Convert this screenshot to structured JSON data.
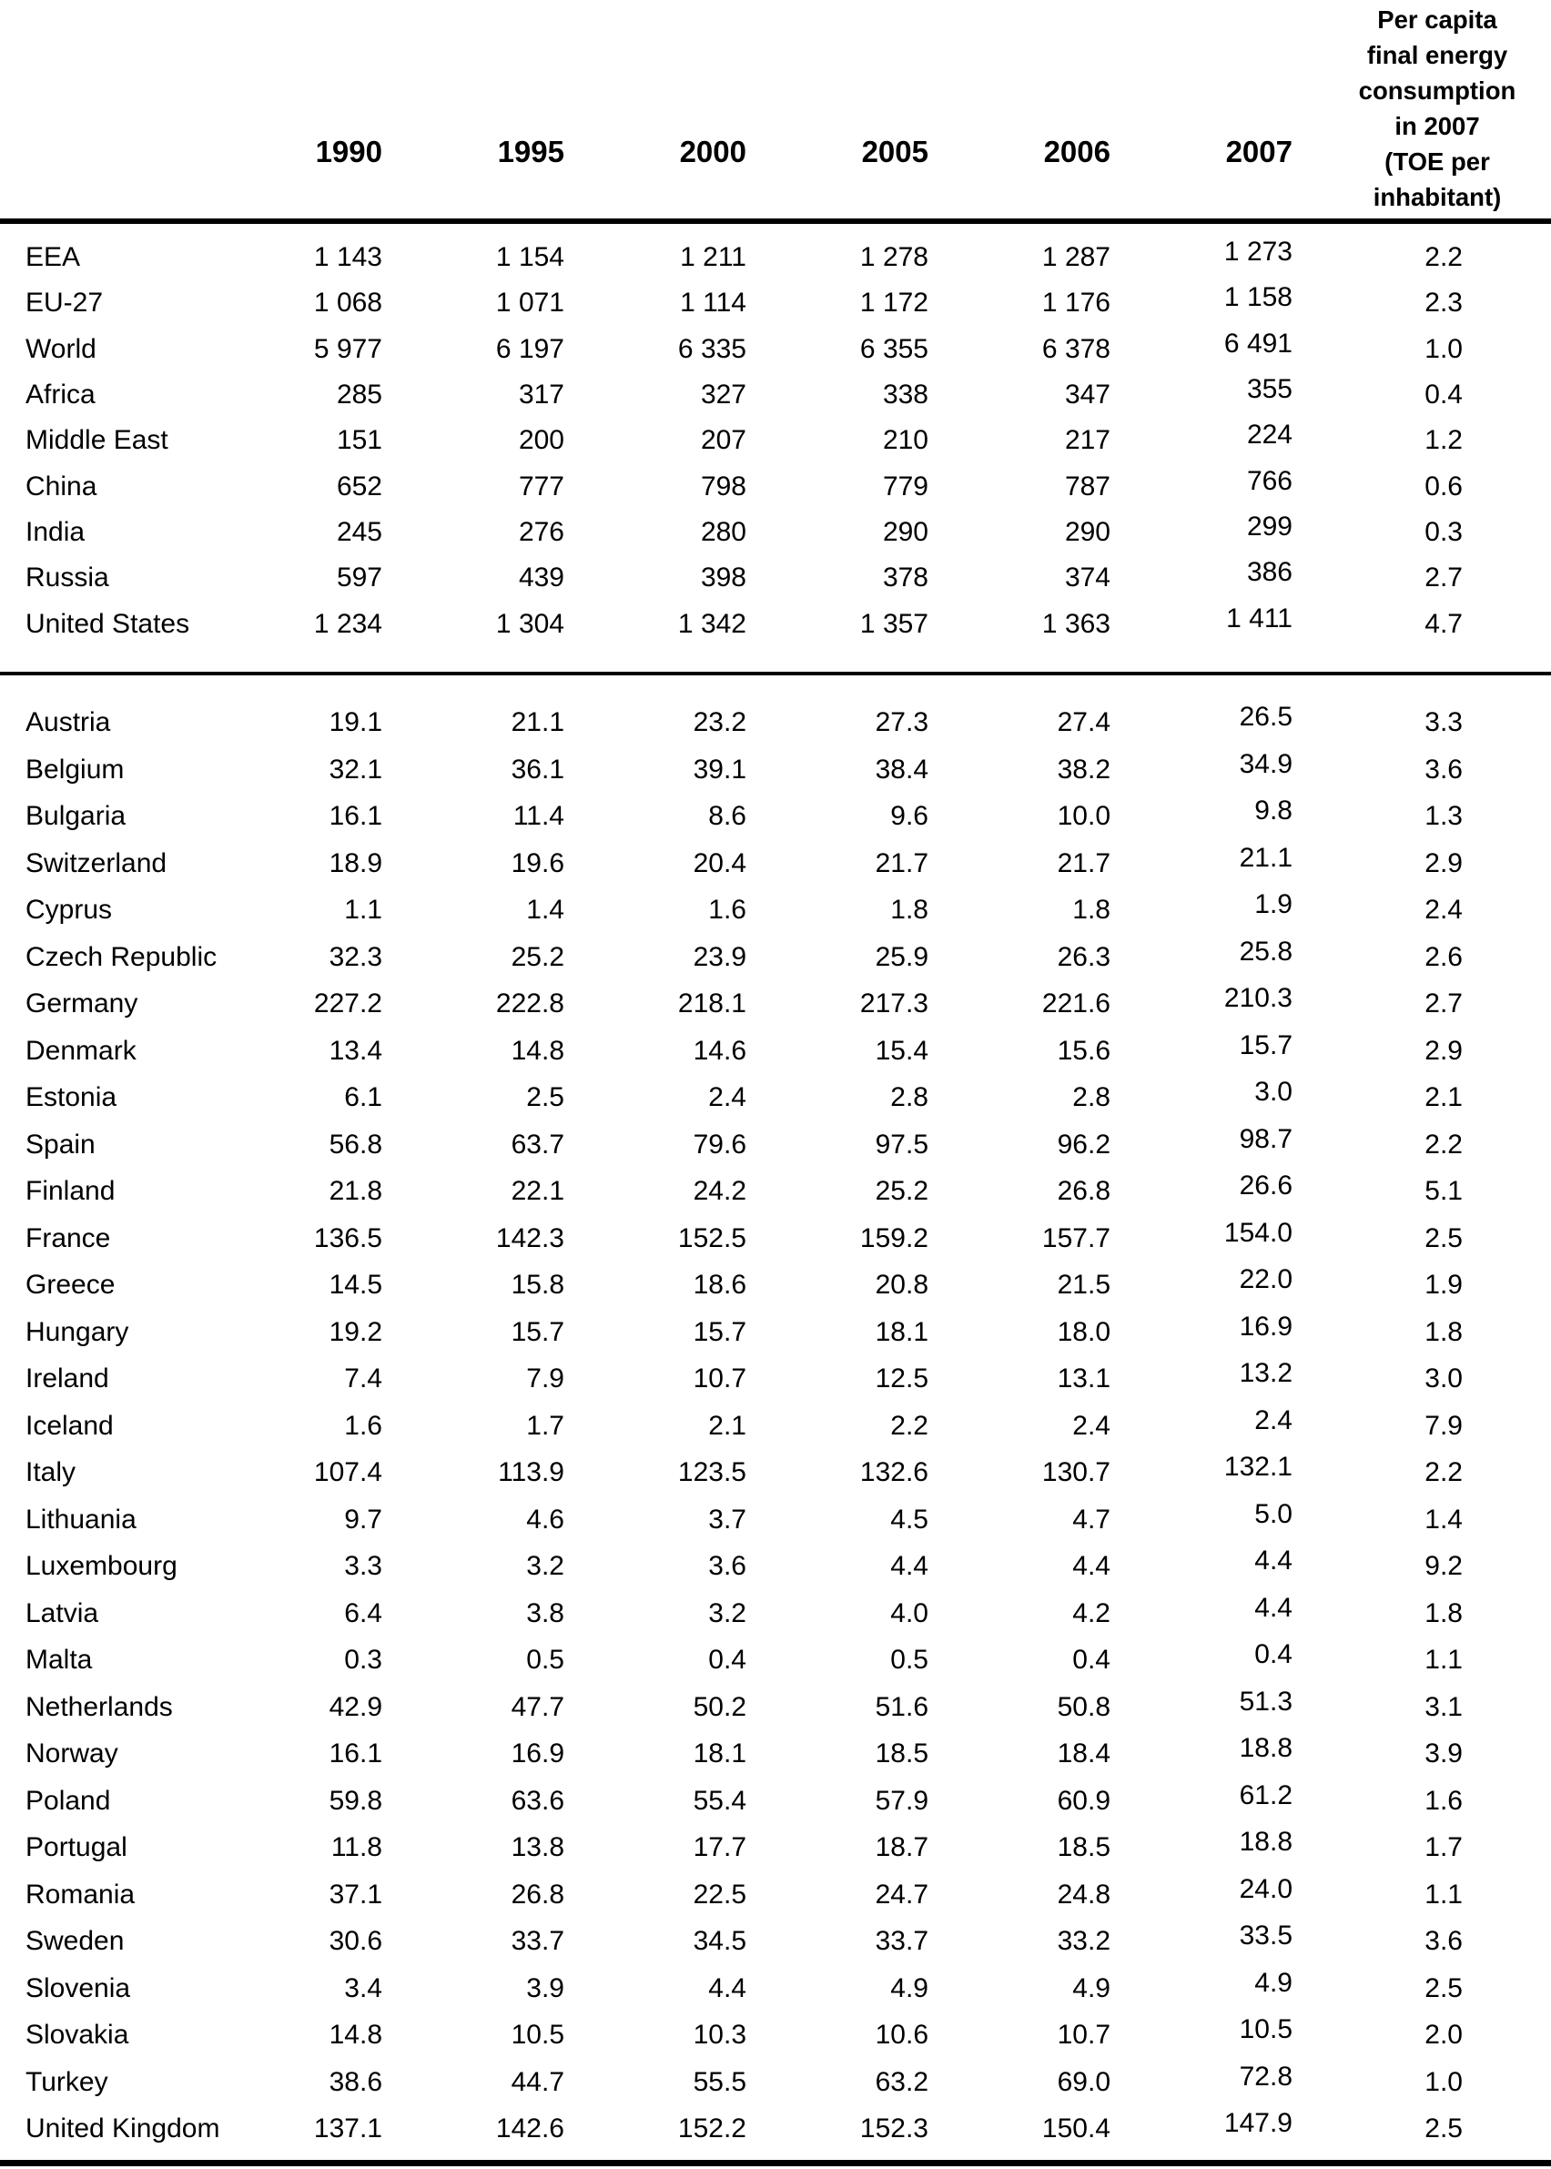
{
  "table": {
    "corner_label": "",
    "year_headers": [
      "1990",
      "1995",
      "2000",
      "2005",
      "2006",
      "2007"
    ],
    "per_capita_header_lines": [
      "Per capita",
      "final energy",
      "consumption",
      "in 2007",
      "(TOE per",
      "inhabitant)"
    ],
    "sections": [
      {
        "name": "world-regions",
        "rows": [
          {
            "label": "EEA",
            "values": [
              "1 143",
              "1 154",
              "1 211",
              "1 278",
              "1 287",
              "1 273",
              "2.2"
            ]
          },
          {
            "label": "EU-27",
            "values": [
              "1 068",
              "1 071",
              "1 114",
              "1 172",
              "1 176",
              "1 158",
              "2.3"
            ]
          },
          {
            "label": "World",
            "values": [
              "5 977",
              "6 197",
              "6 335",
              "6 355",
              "6 378",
              "6 491",
              "1.0"
            ]
          },
          {
            "label": "Africa",
            "values": [
              "285",
              "317",
              "327",
              "338",
              "347",
              "355",
              "0.4"
            ]
          },
          {
            "label": "Middle East",
            "values": [
              "151",
              "200",
              "207",
              "210",
              "217",
              "224",
              "1.2"
            ]
          },
          {
            "label": "China",
            "values": [
              "652",
              "777",
              "798",
              "779",
              "787",
              "766",
              "0.6"
            ]
          },
          {
            "label": "India",
            "values": [
              "245",
              "276",
              "280",
              "290",
              "290",
              "299",
              "0.3"
            ]
          },
          {
            "label": "Russia",
            "values": [
              "597",
              "439",
              "398",
              "378",
              "374",
              "386",
              "2.7"
            ]
          },
          {
            "label": "United States",
            "values": [
              "1 234",
              "1 304",
              "1 342",
              "1 357",
              "1 363",
              "1 411",
              "4.7"
            ]
          }
        ]
      },
      {
        "name": "countries",
        "rows": [
          {
            "label": "Austria",
            "values": [
              "19.1",
              "21.1",
              "23.2",
              "27.3",
              "27.4",
              "26.5",
              "3.3"
            ]
          },
          {
            "label": "Belgium",
            "values": [
              "32.1",
              "36.1",
              "39.1",
              "38.4",
              "38.2",
              "34.9",
              "3.6"
            ]
          },
          {
            "label": "Bulgaria",
            "values": [
              "16.1",
              "11.4",
              "8.6",
              "9.6",
              "10.0",
              "9.8",
              "1.3"
            ]
          },
          {
            "label": "Switzerland",
            "values": [
              "18.9",
              "19.6",
              "20.4",
              "21.7",
              "21.7",
              "21.1",
              "2.9"
            ]
          },
          {
            "label": "Cyprus",
            "values": [
              "1.1",
              "1.4",
              "1.6",
              "1.8",
              "1.8",
              "1.9",
              "2.4"
            ]
          },
          {
            "label": "Czech Republic",
            "values": [
              "32.3",
              "25.2",
              "23.9",
              "25.9",
              "26.3",
              "25.8",
              "2.6"
            ]
          },
          {
            "label": "Germany",
            "values": [
              "227.2",
              "222.8",
              "218.1",
              "217.3",
              "221.6",
              "210.3",
              "2.7"
            ]
          },
          {
            "label": "Denmark",
            "values": [
              "13.4",
              "14.8",
              "14.6",
              "15.4",
              "15.6",
              "15.7",
              "2.9"
            ]
          },
          {
            "label": "Estonia",
            "values": [
              "6.1",
              "2.5",
              "2.4",
              "2.8",
              "2.8",
              "3.0",
              "2.1"
            ]
          },
          {
            "label": "Spain",
            "values": [
              "56.8",
              "63.7",
              "79.6",
              "97.5",
              "96.2",
              "98.7",
              "2.2"
            ]
          },
          {
            "label": "Finland",
            "values": [
              "21.8",
              "22.1",
              "24.2",
              "25.2",
              "26.8",
              "26.6",
              "5.1"
            ]
          },
          {
            "label": "France",
            "values": [
              "136.5",
              "142.3",
              "152.5",
              "159.2",
              "157.7",
              "154.0",
              "2.5"
            ]
          },
          {
            "label": "Greece",
            "values": [
              "14.5",
              "15.8",
              "18.6",
              "20.8",
              "21.5",
              "22.0",
              "1.9"
            ]
          },
          {
            "label": "Hungary",
            "values": [
              "19.2",
              "15.7",
              "15.7",
              "18.1",
              "18.0",
              "16.9",
              "1.8"
            ]
          },
          {
            "label": "Ireland",
            "values": [
              "7.4",
              "7.9",
              "10.7",
              "12.5",
              "13.1",
              "13.2",
              "3.0"
            ]
          },
          {
            "label": "Iceland",
            "values": [
              "1.6",
              "1.7",
              "2.1",
              "2.2",
              "2.4",
              "2.4",
              "7.9"
            ]
          },
          {
            "label": "Italy",
            "values": [
              "107.4",
              "113.9",
              "123.5",
              "132.6",
              "130.7",
              "132.1",
              "2.2"
            ]
          },
          {
            "label": "Lithuania",
            "values": [
              "9.7",
              "4.6",
              "3.7",
              "4.5",
              "4.7",
              "5.0",
              "1.4"
            ]
          },
          {
            "label": "Luxembourg",
            "values": [
              "3.3",
              "3.2",
              "3.6",
              "4.4",
              "4.4",
              "4.4",
              "9.2"
            ]
          },
          {
            "label": "Latvia",
            "values": [
              "6.4",
              "3.8",
              "3.2",
              "4.0",
              "4.2",
              "4.4",
              "1.8"
            ]
          },
          {
            "label": "Malta",
            "values": [
              "0.3",
              "0.5",
              "0.4",
              "0.5",
              "0.4",
              "0.4",
              "1.1"
            ]
          },
          {
            "label": "Netherlands",
            "values": [
              "42.9",
              "47.7",
              "50.2",
              "51.6",
              "50.8",
              "51.3",
              "3.1"
            ]
          },
          {
            "label": "Norway",
            "values": [
              "16.1",
              "16.9",
              "18.1",
              "18.5",
              "18.4",
              "18.8",
              "3.9"
            ]
          },
          {
            "label": "Poland",
            "values": [
              "59.8",
              "63.6",
              "55.4",
              "57.9",
              "60.9",
              "61.2",
              "1.6"
            ]
          },
          {
            "label": "Portugal",
            "values": [
              "11.8",
              "13.8",
              "17.7",
              "18.7",
              "18.5",
              "18.8",
              "1.7"
            ]
          },
          {
            "label": "Romania",
            "values": [
              "37.1",
              "26.8",
              "22.5",
              "24.7",
              "24.8",
              "24.0",
              "1.1"
            ]
          },
          {
            "label": "Sweden",
            "values": [
              "30.6",
              "33.7",
              "34.5",
              "33.7",
              "33.2",
              "33.5",
              "3.6"
            ]
          },
          {
            "label": "Slovenia",
            "values": [
              "3.4",
              "3.9",
              "4.4",
              "4.9",
              "4.9",
              "4.9",
              "2.5"
            ]
          },
          {
            "label": "Slovakia",
            "values": [
              "14.8",
              "10.5",
              "10.3",
              "10.6",
              "10.7",
              "10.5",
              "2.0"
            ]
          },
          {
            "label": "Turkey",
            "values": [
              "38.6",
              "44.7",
              "55.5",
              "63.2",
              "69.0",
              "72.8",
              "1.0"
            ]
          },
          {
            "label": "United Kingdom",
            "values": [
              "137.1",
              "142.6",
              "152.2",
              "152.3",
              "150.4",
              "147.9",
              "2.5"
            ]
          }
        ]
      }
    ]
  },
  "chart_data": {
    "type": "table",
    "columns": [
      "",
      "1990",
      "1995",
      "2000",
      "2005",
      "2006",
      "2007",
      "Per capita final energy consumption in 2007 (TOE per inhabitant)"
    ],
    "rows": [
      [
        "EEA",
        1143,
        1154,
        1211,
        1278,
        1287,
        1273,
        2.2
      ],
      [
        "EU-27",
        1068,
        1071,
        1114,
        1172,
        1176,
        1158,
        2.3
      ],
      [
        "World",
        5977,
        6197,
        6335,
        6355,
        6378,
        6491,
        1.0
      ],
      [
        "Africa",
        285,
        317,
        327,
        338,
        347,
        355,
        0.4
      ],
      [
        "Middle East",
        151,
        200,
        207,
        210,
        217,
        224,
        1.2
      ],
      [
        "China",
        652,
        777,
        798,
        779,
        787,
        766,
        0.6
      ],
      [
        "India",
        245,
        276,
        280,
        290,
        290,
        299,
        0.3
      ],
      [
        "Russia",
        597,
        439,
        398,
        378,
        374,
        386,
        2.7
      ],
      [
        "United States",
        1234,
        1304,
        1342,
        1357,
        1363,
        1411,
        4.7
      ],
      [
        "Austria",
        19.1,
        21.1,
        23.2,
        27.3,
        27.4,
        26.5,
        3.3
      ],
      [
        "Belgium",
        32.1,
        36.1,
        39.1,
        38.4,
        38.2,
        34.9,
        3.6
      ],
      [
        "Bulgaria",
        16.1,
        11.4,
        8.6,
        9.6,
        10.0,
        9.8,
        1.3
      ],
      [
        "Switzerland",
        18.9,
        19.6,
        20.4,
        21.7,
        21.7,
        21.1,
        2.9
      ],
      [
        "Cyprus",
        1.1,
        1.4,
        1.6,
        1.8,
        1.8,
        1.9,
        2.4
      ],
      [
        "Czech Republic",
        32.3,
        25.2,
        23.9,
        25.9,
        26.3,
        25.8,
        2.6
      ],
      [
        "Germany",
        227.2,
        222.8,
        218.1,
        217.3,
        221.6,
        210.3,
        2.7
      ],
      [
        "Denmark",
        13.4,
        14.8,
        14.6,
        15.4,
        15.6,
        15.7,
        2.9
      ],
      [
        "Estonia",
        6.1,
        2.5,
        2.4,
        2.8,
        2.8,
        3.0,
        2.1
      ],
      [
        "Spain",
        56.8,
        63.7,
        79.6,
        97.5,
        96.2,
        98.7,
        2.2
      ],
      [
        "Finland",
        21.8,
        22.1,
        24.2,
        25.2,
        26.8,
        26.6,
        5.1
      ],
      [
        "France",
        136.5,
        142.3,
        152.5,
        159.2,
        157.7,
        154.0,
        2.5
      ],
      [
        "Greece",
        14.5,
        15.8,
        18.6,
        20.8,
        21.5,
        22.0,
        1.9
      ],
      [
        "Hungary",
        19.2,
        15.7,
        15.7,
        18.1,
        18.0,
        16.9,
        1.8
      ],
      [
        "Ireland",
        7.4,
        7.9,
        10.7,
        12.5,
        13.1,
        13.2,
        3.0
      ],
      [
        "Iceland",
        1.6,
        1.7,
        2.1,
        2.2,
        2.4,
        2.4,
        7.9
      ],
      [
        "Italy",
        107.4,
        113.9,
        123.5,
        132.6,
        130.7,
        132.1,
        2.2
      ],
      [
        "Lithuania",
        9.7,
        4.6,
        3.7,
        4.5,
        4.7,
        5.0,
        1.4
      ],
      [
        "Luxembourg",
        3.3,
        3.2,
        3.6,
        4.4,
        4.4,
        4.4,
        9.2
      ],
      [
        "Latvia",
        6.4,
        3.8,
        3.2,
        4.0,
        4.2,
        4.4,
        1.8
      ],
      [
        "Malta",
        0.3,
        0.5,
        0.4,
        0.5,
        0.4,
        0.4,
        1.1
      ],
      [
        "Netherlands",
        42.9,
        47.7,
        50.2,
        51.6,
        50.8,
        51.3,
        3.1
      ],
      [
        "Norway",
        16.1,
        16.9,
        18.1,
        18.5,
        18.4,
        18.8,
        3.9
      ],
      [
        "Poland",
        59.8,
        63.6,
        55.4,
        57.9,
        60.9,
        61.2,
        1.6
      ],
      [
        "Portugal",
        11.8,
        13.8,
        17.7,
        18.7,
        18.5,
        18.8,
        1.7
      ],
      [
        "Romania",
        37.1,
        26.8,
        22.5,
        24.7,
        24.8,
        24.0,
        1.1
      ],
      [
        "Sweden",
        30.6,
        33.7,
        34.5,
        33.7,
        33.2,
        33.5,
        3.6
      ],
      [
        "Slovenia",
        3.4,
        3.9,
        4.4,
        4.9,
        4.9,
        4.9,
        2.5
      ],
      [
        "Slovakia",
        14.8,
        10.5,
        10.3,
        10.6,
        10.7,
        10.5,
        2.0
      ],
      [
        "Turkey",
        38.6,
        44.7,
        55.5,
        63.2,
        69.0,
        72.8,
        1.0
      ],
      [
        "United Kingdom",
        137.1,
        142.6,
        152.2,
        152.3,
        150.4,
        147.9,
        2.5
      ]
    ]
  }
}
